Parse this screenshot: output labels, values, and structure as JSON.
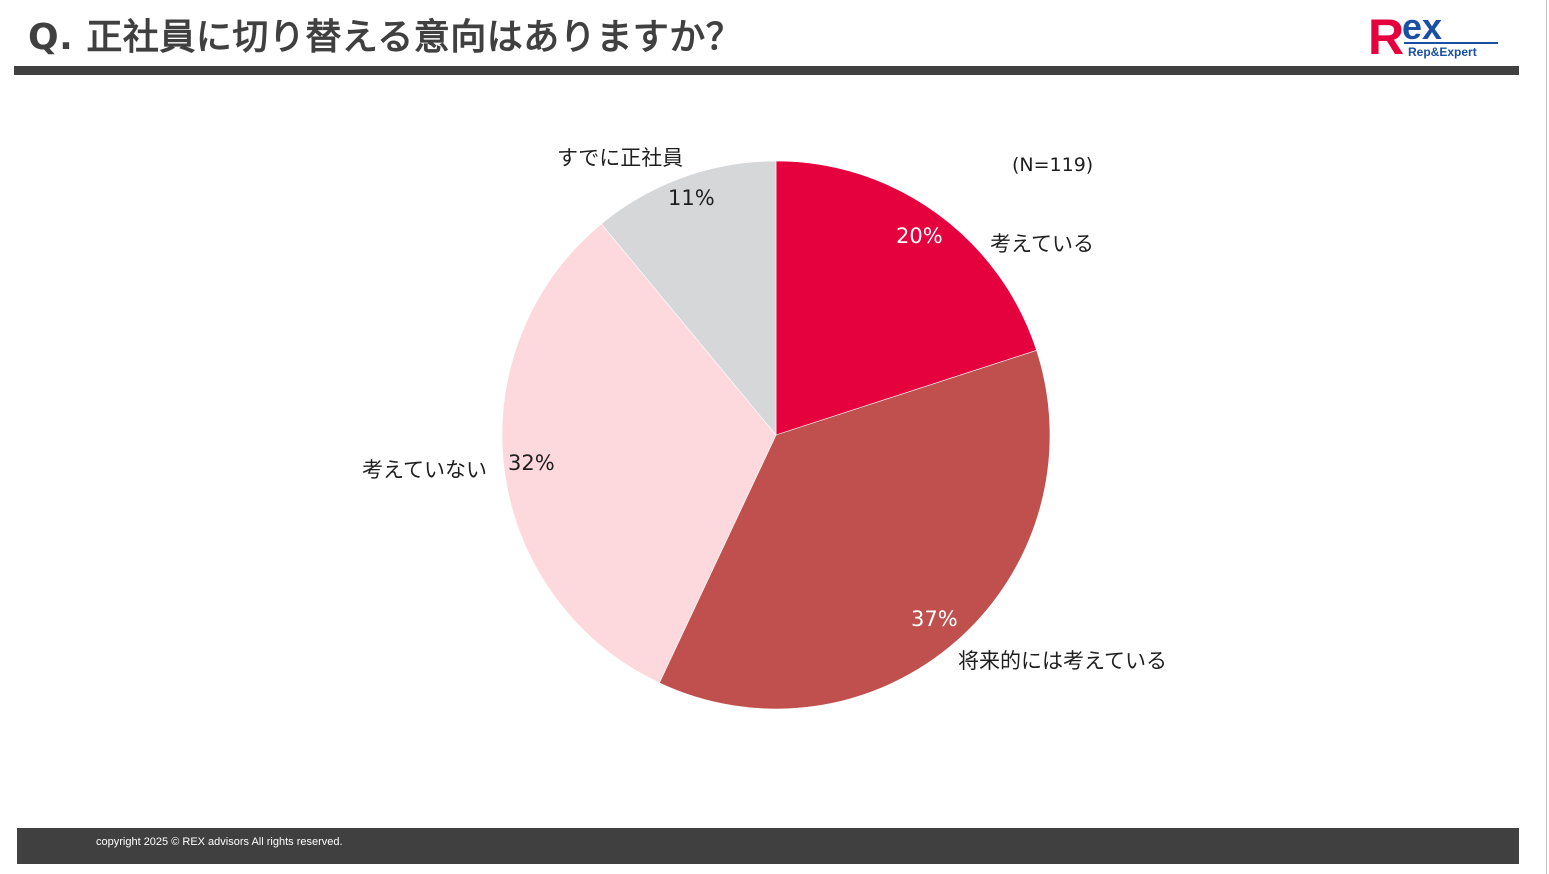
{
  "header": {
    "title": "Q. 正社員に切り替える意向はありますか？",
    "logo": {
      "main": "Rex",
      "sub": "Rep&Expert",
      "colors": {
        "r": "#e5003e",
        "ex": "#1a4fa3"
      }
    }
  },
  "chart": {
    "sample_size": "(N=119)",
    "slices": [
      {
        "label": "考えている",
        "pct_text": "20%"
      },
      {
        "label": "将来的には考えている",
        "pct_text": "37%"
      },
      {
        "label": "考えていない",
        "pct_text": "32%"
      },
      {
        "label": "すでに正社員",
        "pct_text": "11%"
      }
    ]
  },
  "footer": {
    "copyright": "copyright 2025 © REX advisors All rights reserved."
  },
  "chart_data": {
    "type": "pie",
    "title": "Q. 正社員に切り替える意向はありますか？",
    "subtitle": "(N=119)",
    "categories": [
      "考えている",
      "将来的には考えている",
      "考えていない",
      "すでに正社員"
    ],
    "values": [
      20,
      37,
      32,
      11
    ],
    "unit": "%",
    "colors": [
      "#e5003e",
      "#c0504d",
      "#fdd8dd",
      "#d6d7d9"
    ],
    "start_angle": "12 o'clock",
    "direction": "clockwise",
    "legend": "none (direct labels)"
  }
}
